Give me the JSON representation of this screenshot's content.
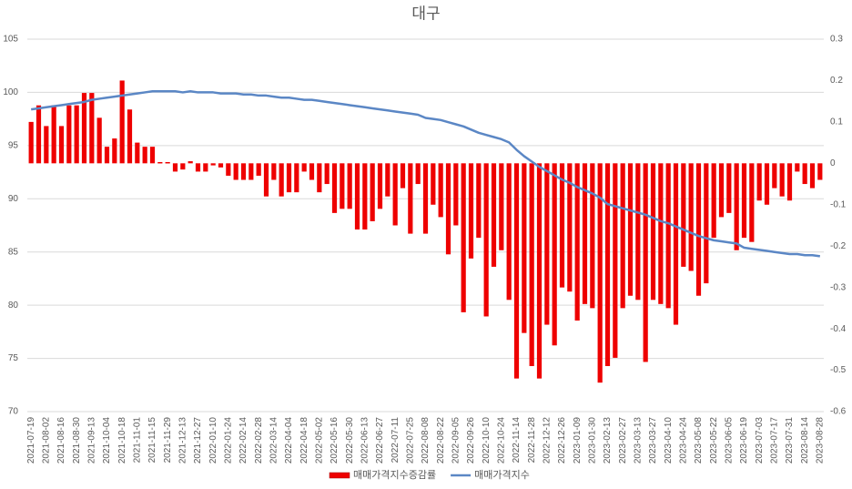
{
  "chart_data": {
    "type": "bar_line",
    "title": "대구",
    "categories": [
      "2021-07-19",
      null,
      "2021-08-02",
      null,
      "2021-08-16",
      null,
      "2021-08-30",
      null,
      "2021-09-13",
      null,
      "2021-10-04",
      null,
      "2021-10-18",
      null,
      "2021-11-01",
      null,
      "2021-11-15",
      null,
      "2021-11-29",
      null,
      "2021-12-13",
      null,
      "2021-12-27",
      null,
      "2022-01-10",
      null,
      "2022-01-24",
      null,
      "2022-02-14",
      null,
      "2022-02-28",
      null,
      "2022-03-14",
      null,
      "2022-04-04",
      null,
      "2022-04-18",
      null,
      "2022-05-02",
      null,
      "2022-05-16",
      null,
      "2022-05-30",
      null,
      "2022-06-13",
      null,
      "2022-06-27",
      null,
      "2022-07-11",
      null,
      "2022-07-25",
      null,
      "2022-08-08",
      null,
      "2022-08-22",
      null,
      "2022-09-05",
      null,
      "2022-09-26",
      null,
      "2022-10-10",
      null,
      "2022-10-24",
      null,
      "2022-11-14",
      null,
      "2022-11-28",
      null,
      "2022-12-12",
      null,
      "2022-12-26",
      null,
      "2023-01-09",
      null,
      "2023-01-30",
      null,
      "2023-02-13",
      null,
      "2023-02-27",
      null,
      "2023-03-13",
      null,
      "2023-03-27",
      null,
      "2023-04-10",
      null,
      "2023-04-24",
      null,
      "2023-05-08",
      null,
      "2023-05-22",
      null,
      "2023-06-05",
      null,
      "2023-06-19",
      null,
      "2023-07-03",
      null,
      "2023-07-17",
      null,
      "2023-07-31",
      null,
      "2023-08-14",
      null,
      "2023-08-28"
    ],
    "series": [
      {
        "name": "매매가격지수증감률",
        "type": "bar",
        "axis": "y2",
        "color": "#ee0000",
        "values": [
          0.1,
          0.14,
          0.09,
          0.14,
          0.09,
          0.14,
          0.14,
          0.17,
          0.17,
          0.11,
          0.04,
          0.06,
          0.2,
          0.13,
          0.05,
          0.04,
          0.04,
          0.003,
          0.003,
          -0.02,
          -0.015,
          0.005,
          -0.02,
          -0.02,
          -0.005,
          -0.01,
          -0.03,
          -0.04,
          -0.04,
          -0.04,
          -0.03,
          -0.08,
          -0.04,
          -0.08,
          -0.07,
          -0.07,
          -0.02,
          -0.04,
          -0.07,
          -0.05,
          -0.12,
          -0.11,
          -0.11,
          -0.16,
          -0.16,
          -0.14,
          -0.11,
          -0.08,
          -0.15,
          -0.06,
          -0.17,
          -0.05,
          -0.17,
          -0.1,
          -0.13,
          -0.22,
          -0.15,
          -0.36,
          -0.23,
          -0.18,
          -0.37,
          -0.25,
          -0.21,
          -0.33,
          -0.52,
          -0.41,
          -0.49,
          -0.52,
          -0.39,
          -0.44,
          -0.3,
          -0.31,
          -0.38,
          -0.34,
          -0.35,
          -0.53,
          -0.49,
          -0.47,
          -0.35,
          -0.32,
          -0.33,
          -0.48,
          -0.33,
          -0.34,
          -0.35,
          -0.39,
          -0.25,
          -0.26,
          -0.32,
          -0.29,
          -0.18,
          -0.13,
          -0.12,
          -0.21,
          -0.18,
          -0.19,
          -0.09,
          -0.1,
          -0.06,
          -0.08,
          -0.09,
          -0.02,
          -0.05,
          -0.06,
          -0.04
        ]
      },
      {
        "name": "매매가격지수",
        "type": "line",
        "axis": "y",
        "color": "#5b87c5",
        "values": [
          98.4,
          98.5,
          98.6,
          98.7,
          98.8,
          98.9,
          99.0,
          99.1,
          99.3,
          99.4,
          99.5,
          99.6,
          99.7,
          99.8,
          99.9,
          100.0,
          100.1,
          100.1,
          100.1,
          100.1,
          100.0,
          100.1,
          100.0,
          100.0,
          100.0,
          99.9,
          99.9,
          99.9,
          99.8,
          99.8,
          99.7,
          99.7,
          99.6,
          99.5,
          99.5,
          99.4,
          99.3,
          99.3,
          99.2,
          99.1,
          99.0,
          98.9,
          98.8,
          98.7,
          98.6,
          98.5,
          98.4,
          98.3,
          98.2,
          98.1,
          98.0,
          97.9,
          97.6,
          97.5,
          97.4,
          97.2,
          97.0,
          96.8,
          96.5,
          96.2,
          96.0,
          95.8,
          95.6,
          95.3,
          94.6,
          94.0,
          93.5,
          93.0,
          92.6,
          92.2,
          91.8,
          91.5,
          91.1,
          90.8,
          90.5,
          90.1,
          89.5,
          89.3,
          89.1,
          88.9,
          88.7,
          88.5,
          88.2,
          87.9,
          87.7,
          87.4,
          87.1,
          86.8,
          86.5,
          86.3,
          86.1,
          86.0,
          85.9,
          85.8,
          85.4,
          85.3,
          85.2,
          85.1,
          85.0,
          84.9,
          84.8,
          84.8,
          84.7,
          84.7,
          84.6
        ]
      }
    ],
    "ylim": [
      70,
      105
    ],
    "yticks": [
      70,
      75,
      80,
      85,
      90,
      95,
      100,
      105
    ],
    "y2lim": [
      -0.6,
      0.3
    ],
    "y2ticks": [
      -0.6,
      -0.5,
      -0.4,
      -0.3,
      -0.2,
      -0.1,
      0,
      0.1,
      0.2,
      0.3
    ],
    "grid": true,
    "legend": "bottom"
  }
}
